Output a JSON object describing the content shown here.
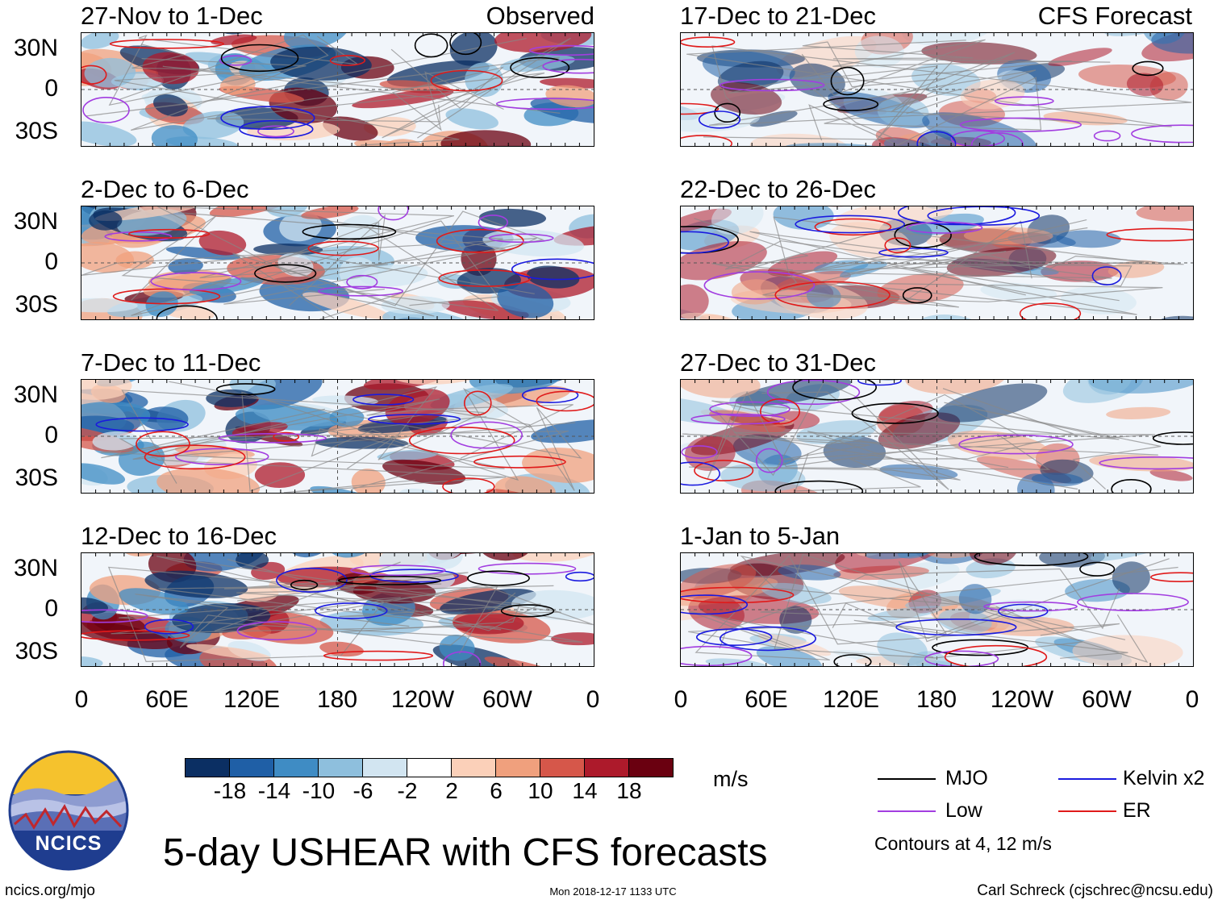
{
  "title": "5-day USHEAR with CFS forecasts",
  "logo": {
    "text": "NCICS",
    "colors": {
      "sun": "#f5c22d",
      "ring": "#1f3d8f",
      "mountain_red": "#c0272d"
    }
  },
  "footer": {
    "url": "ncics.org/mjo",
    "timestamp": "Mon 2018-12-17 1133 UTC",
    "author": "Carl Schreck (cjschrec@ncsu.edu)"
  },
  "columns": {
    "left_label": "Observed",
    "right_label": "CFS Forecast"
  },
  "panels": {
    "left": [
      {
        "period": "27-Nov to 1-Dec"
      },
      {
        "period": "2-Dec to 6-Dec"
      },
      {
        "period": "7-Dec to 11-Dec"
      },
      {
        "period": "12-Dec to 16-Dec"
      }
    ],
    "right": [
      {
        "period": "17-Dec to 21-Dec"
      },
      {
        "period": "22-Dec to 26-Dec"
      },
      {
        "period": "27-Dec to 31-Dec"
      },
      {
        "period": "1-Jan to 5-Jan"
      }
    ]
  },
  "axes": {
    "y_ticks": [
      "30N",
      "0",
      "30S"
    ],
    "x_ticks": [
      "0",
      "60E",
      "120E",
      "180",
      "120W",
      "60W",
      "0"
    ]
  },
  "colorbar": {
    "units": "m/s",
    "labels": [
      "-18",
      "-14",
      "-10",
      "-6",
      "-2",
      "2",
      "6",
      "10",
      "14",
      "18"
    ],
    "colors": [
      "#0b2f63",
      "#1f5fa6",
      "#3f8cc4",
      "#8ebfdd",
      "#d2e5f1",
      "#ffffff",
      "#fbd0b9",
      "#f0a07d",
      "#d6574a",
      "#ad1a2b",
      "#6a0010"
    ]
  },
  "legend": {
    "items": [
      {
        "label": "MJO",
        "color": "#000000"
      },
      {
        "label": "Kelvin x2",
        "color": "#1a1adf"
      },
      {
        "label": "Low",
        "color": "#a23de0"
      },
      {
        "label": "ER",
        "color": "#e01a1a"
      }
    ],
    "note": "Contours at 4, 12 m/s"
  }
}
